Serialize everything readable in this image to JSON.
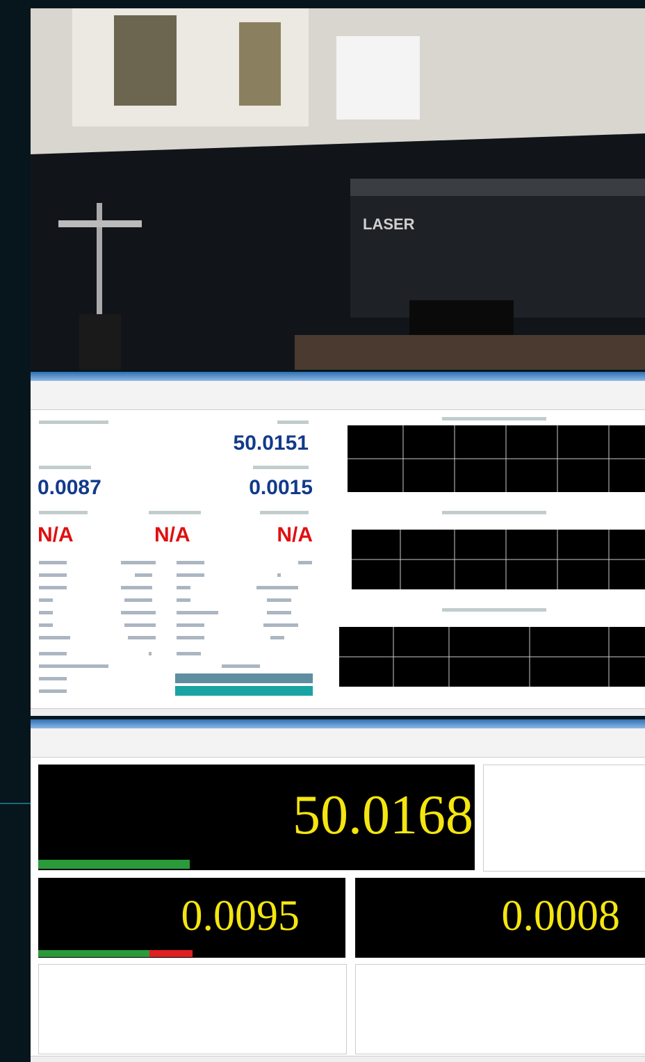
{
  "photo": {
    "brand": "LASER"
  },
  "window1": {
    "length": "50.0151",
    "straightness_x": "0.0087",
    "straightness_y": "0.0015",
    "angles": [
      "N/A",
      "N/A",
      "N/A"
    ]
  },
  "window2": {
    "length": "50.0168",
    "straightness_x": "0.0095",
    "straightness_y": "0.0008"
  }
}
